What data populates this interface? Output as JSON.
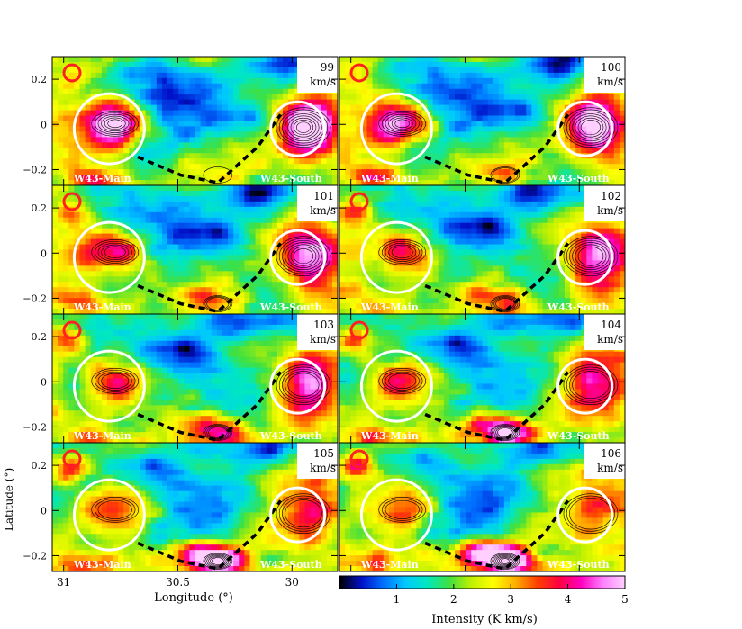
{
  "chart_data": {
    "type": "heatmap",
    "title": "",
    "xlabel": "Longitude (°)",
    "ylabel": "Latitude (°)",
    "xlim": [
      31.05,
      29.8
    ],
    "ylim": [
      -0.27,
      0.3
    ],
    "x_ticks": [
      31,
      30.5,
      30
    ],
    "x_tick_labels": [
      "31",
      "30.5",
      "30"
    ],
    "y_ticks": [
      0.2,
      0,
      -0.2
    ],
    "y_tick_labels": [
      "0.2",
      "0",
      "−0.2"
    ],
    "velocity_unit": "km/s",
    "panels": [
      {
        "velocity": "99"
      },
      {
        "velocity": "100"
      },
      {
        "velocity": "101"
      },
      {
        "velocity": "102"
      },
      {
        "velocity": "103"
      },
      {
        "velocity": "104"
      },
      {
        "velocity": "105"
      },
      {
        "velocity": "106"
      }
    ],
    "region_labels": [
      "W43-Main",
      "W43-South"
    ],
    "colorbar": {
      "label": "Intensity (K km/s)",
      "range": [
        0,
        5
      ],
      "ticks": [
        "1",
        "2",
        "3",
        "4",
        "5"
      ],
      "colors": [
        "#000000",
        "#0010c8",
        "#0070ff",
        "#00c8ff",
        "#00e8c0",
        "#40e040",
        "#c0f000",
        "#ffff00",
        "#ffb000",
        "#ff4000",
        "#ff0040",
        "#ff00c0",
        "#ff80ff",
        "#ffd0ff"
      ]
    },
    "circle_colors": {
      "region": "#ffffff",
      "beam": "#ff2020"
    }
  }
}
